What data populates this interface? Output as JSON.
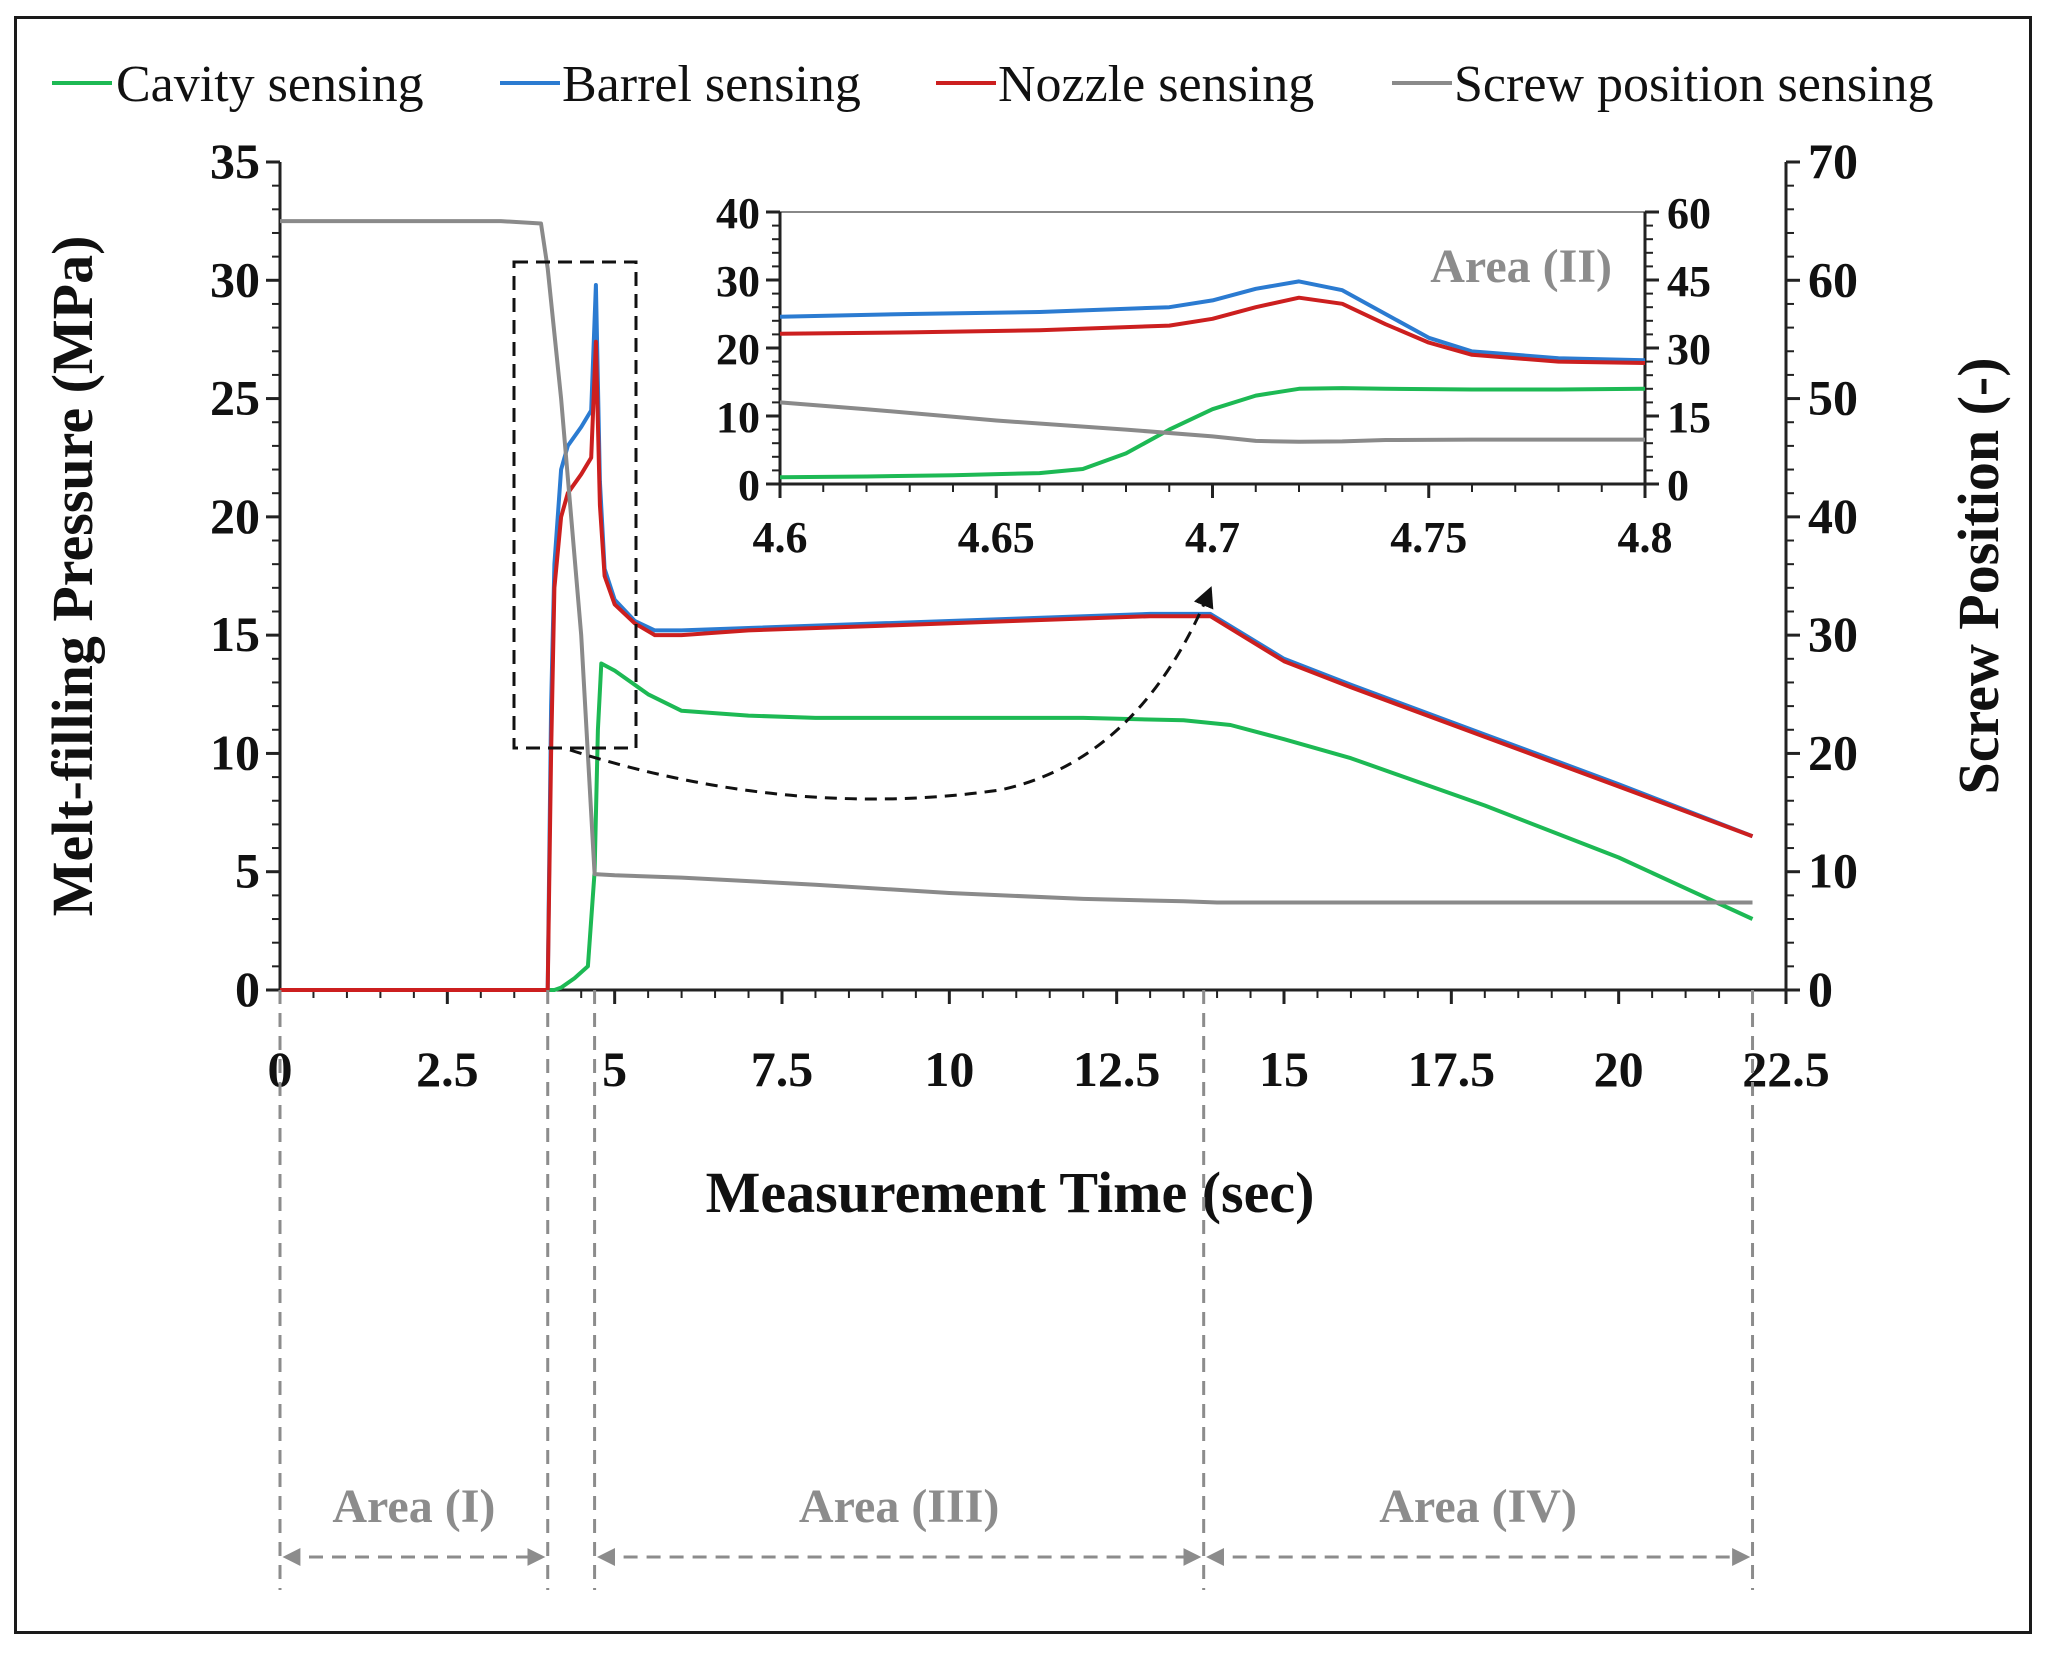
{
  "colors": {
    "cavity": "#1db954",
    "barrel": "#2b7bd1",
    "nozzle": "#cc1f1f",
    "screw": "#8a8a8a",
    "area_text": "#8c8c8c",
    "axis": "#222222"
  },
  "chart_data": [
    {
      "id": "main",
      "type": "line",
      "xlabel": "Measurement Time (sec)",
      "ylabel": "Melt-filling Pressure (MPa)",
      "y2label": "Screw Position (-)",
      "xlim": [
        0,
        22.5
      ],
      "ylim": [
        0,
        35
      ],
      "y2lim": [
        0,
        70
      ],
      "xticks": [
        "0",
        "2.5",
        "5",
        "7.5",
        "10",
        "12.5",
        "15",
        "17.5",
        "20",
        "22.5"
      ],
      "yticks": [
        "0",
        "5",
        "10",
        "15",
        "20",
        "25",
        "30",
        "35"
      ],
      "y2ticks": [
        "0",
        "10",
        "20",
        "30",
        "40",
        "50",
        "60",
        "70"
      ],
      "legend": [
        "Cavity sensing",
        "Barrel sensing",
        "Nozzle sensing",
        "Screw position sensing"
      ],
      "legend_position": "top",
      "series": [
        {
          "name": "Cavity sensing",
          "axis": "left",
          "x": [
            0,
            4.1,
            4.2,
            4.4,
            4.6,
            4.7,
            4.75,
            4.8,
            5.0,
            5.5,
            6.0,
            7.0,
            8.0,
            10.0,
            12.0,
            13.5,
            14.2,
            15.0,
            16.0,
            18.0,
            20.0,
            21.0,
            22.0
          ],
          "y": [
            0,
            0,
            0.1,
            0.5,
            1.0,
            5.0,
            11.0,
            13.8,
            13.5,
            12.5,
            11.8,
            11.6,
            11.5,
            11.5,
            11.5,
            11.4,
            11.2,
            10.6,
            9.8,
            7.8,
            5.6,
            4.3,
            3.0
          ]
        },
        {
          "name": "Barrel sensing",
          "axis": "left",
          "x": [
            0,
            3.9,
            4.0,
            4.05,
            4.1,
            4.2,
            4.3,
            4.5,
            4.65,
            4.72,
            4.78,
            4.85,
            5.0,
            5.3,
            5.6,
            6.0,
            7.0,
            9.0,
            11.0,
            13.0,
            13.9,
            15.0,
            16.0,
            18.0,
            20.0,
            22.0
          ],
          "y": [
            0,
            0,
            0,
            12.0,
            18.0,
            22.0,
            23.0,
            23.8,
            24.5,
            29.8,
            21.5,
            17.8,
            16.5,
            15.6,
            15.2,
            15.2,
            15.3,
            15.5,
            15.7,
            15.9,
            15.9,
            14.0,
            12.9,
            10.8,
            8.7,
            6.5
          ]
        },
        {
          "name": "Nozzle sensing",
          "axis": "left",
          "x": [
            0,
            3.9,
            4.0,
            4.05,
            4.1,
            4.2,
            4.3,
            4.5,
            4.65,
            4.72,
            4.78,
            4.85,
            5.0,
            5.3,
            5.6,
            6.0,
            7.0,
            9.0,
            11.0,
            13.0,
            13.9,
            15.0,
            16.0,
            18.0,
            20.0,
            22.0
          ],
          "y": [
            0,
            0,
            0,
            10.0,
            17.0,
            20.0,
            21.0,
            21.8,
            22.5,
            27.4,
            20.5,
            17.5,
            16.3,
            15.5,
            15.0,
            15.0,
            15.2,
            15.4,
            15.6,
            15.8,
            15.8,
            13.9,
            12.8,
            10.7,
            8.6,
            6.5
          ]
        },
        {
          "name": "Screw position sensing",
          "axis": "right",
          "x": [
            0,
            3.3,
            3.9,
            4.0,
            4.2,
            4.5,
            4.7,
            5.0,
            6.0,
            8.0,
            10.0,
            12.0,
            13.5,
            14.0,
            16.0,
            18.0,
            20.0,
            22.0
          ],
          "y": [
            65,
            65,
            64.8,
            61,
            50,
            30,
            9.8,
            9.7,
            9.5,
            8.9,
            8.2,
            7.7,
            7.5,
            7.4,
            7.4,
            7.4,
            7.4,
            7.4
          ]
        }
      ]
    },
    {
      "id": "inset",
      "type": "line",
      "title": "Area (II)",
      "xlim": [
        4.6,
        4.8
      ],
      "ylim": [
        0,
        40
      ],
      "y2lim": [
        0,
        60
      ],
      "xticks": [
        "4.6",
        "4.65",
        "4.7",
        "4.75",
        "4.8"
      ],
      "yticks": [
        "0",
        "10",
        "20",
        "30",
        "40"
      ],
      "y2ticks": [
        "0",
        "15",
        "30",
        "45",
        "60"
      ],
      "series": [
        {
          "name": "Cavity sensing",
          "axis": "left",
          "x": [
            4.6,
            4.62,
            4.64,
            4.66,
            4.67,
            4.68,
            4.69,
            4.7,
            4.71,
            4.72,
            4.73,
            4.74,
            4.76,
            4.78,
            4.8
          ],
          "y": [
            1.0,
            1.1,
            1.3,
            1.6,
            2.2,
            4.5,
            8.0,
            11.0,
            13.0,
            14.0,
            14.1,
            14.0,
            13.9,
            13.9,
            14.0
          ]
        },
        {
          "name": "Barrel sensing",
          "axis": "left",
          "x": [
            4.6,
            4.63,
            4.66,
            4.69,
            4.7,
            4.71,
            4.72,
            4.73,
            4.74,
            4.75,
            4.76,
            4.78,
            4.8
          ],
          "y": [
            24.6,
            25.0,
            25.3,
            26.0,
            27.0,
            28.7,
            29.8,
            28.5,
            25.0,
            21.5,
            19.5,
            18.5,
            18.2
          ]
        },
        {
          "name": "Nozzle sensing",
          "axis": "left",
          "x": [
            4.6,
            4.63,
            4.66,
            4.69,
            4.7,
            4.71,
            4.72,
            4.73,
            4.74,
            4.75,
            4.76,
            4.78,
            4.8
          ],
          "y": [
            22.1,
            22.3,
            22.6,
            23.3,
            24.3,
            26.0,
            27.4,
            26.5,
            23.5,
            20.8,
            19.0,
            18.0,
            17.8
          ]
        },
        {
          "name": "Screw position sensing",
          "axis": "right",
          "x": [
            4.6,
            4.62,
            4.65,
            4.68,
            4.7,
            4.71,
            4.72,
            4.73,
            4.74,
            4.76,
            4.78,
            4.8
          ],
          "y": [
            18.0,
            16.5,
            14.0,
            12.0,
            10.5,
            9.5,
            9.3,
            9.4,
            9.7,
            9.8,
            9.8,
            9.8
          ]
        }
      ]
    }
  ],
  "areas": [
    {
      "label": "Area (I)",
      "x_from": 0,
      "x_to": 4.0
    },
    {
      "label": "Area (III)",
      "x_from": 4.7,
      "x_to": 13.8
    },
    {
      "label": "Area (IV)",
      "x_from": 13.8,
      "x_to": 22.0
    }
  ]
}
